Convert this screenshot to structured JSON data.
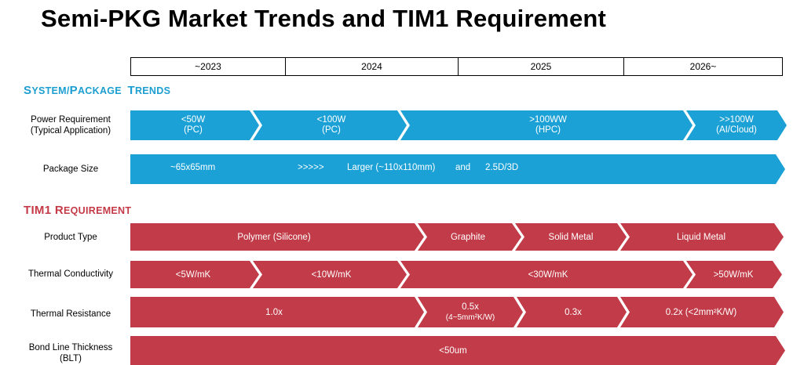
{
  "title": "Semi-PKG Market Trends and TIM1 Requirement",
  "years": [
    "~2023",
    "2024",
    "2025",
    "2026~"
  ],
  "colors": {
    "blue": "#1ca1d6",
    "red": "#c23b48",
    "section_blue": "#1d9ed0",
    "section_red": "#c43a47"
  },
  "system_section": {
    "first": "S",
    "rest": "YSTEM/",
    "first2": "P",
    "rest2": "ACKAGE ",
    "first3": "T",
    "rest3": "RENDS"
  },
  "tim_section": {
    "first": "TIM1 ",
    "first2": "R",
    "rest2": "EQUIREMENT"
  },
  "rows": {
    "power": {
      "label1": "Power Requirement",
      "label2": "(Typical Application)",
      "segments": [
        {
          "line1": "<50W",
          "line2": "(PC)"
        },
        {
          "line1": "<100W",
          "line2": "(PC)"
        },
        {
          "line1": ">100WW",
          "line2": "(HPC)"
        },
        {
          "line1": ">>100W",
          "line2": "(AI/Cloud)"
        }
      ]
    },
    "package": {
      "label": "Package Size",
      "t1": "~65x65mm",
      "t2": ">>>>>",
      "t3": "Larger (~110x110mm)",
      "t4": "and",
      "t5": "2.5D/3D"
    },
    "product": {
      "label": "Product Type",
      "segments": [
        {
          "line1": "Polymer (Silicone)"
        },
        {
          "line1": "Graphite"
        },
        {
          "line1": "Solid Metal"
        },
        {
          "line1": "Liquid Metal"
        }
      ]
    },
    "conductivity": {
      "label": "Thermal Conductivity",
      "segments": [
        {
          "line1": "<5W/mK"
        },
        {
          "line1": "<10W/mK"
        },
        {
          "line1": "<30W/mK"
        },
        {
          "line1": ">50W/mK"
        }
      ]
    },
    "resistance": {
      "label": "Thermal Resistance",
      "segments": [
        {
          "line1": "1.0x"
        },
        {
          "line1": "0.5x",
          "line2": "(4~5mm²K/W)"
        },
        {
          "line1": "0.3x"
        },
        {
          "line1": "0.2x (<2mm²K/W)"
        }
      ]
    },
    "blt": {
      "label1": "Bond Line Thickness",
      "label2": "(BLT)",
      "segments": [
        {
          "line1": "<50um"
        }
      ]
    }
  }
}
